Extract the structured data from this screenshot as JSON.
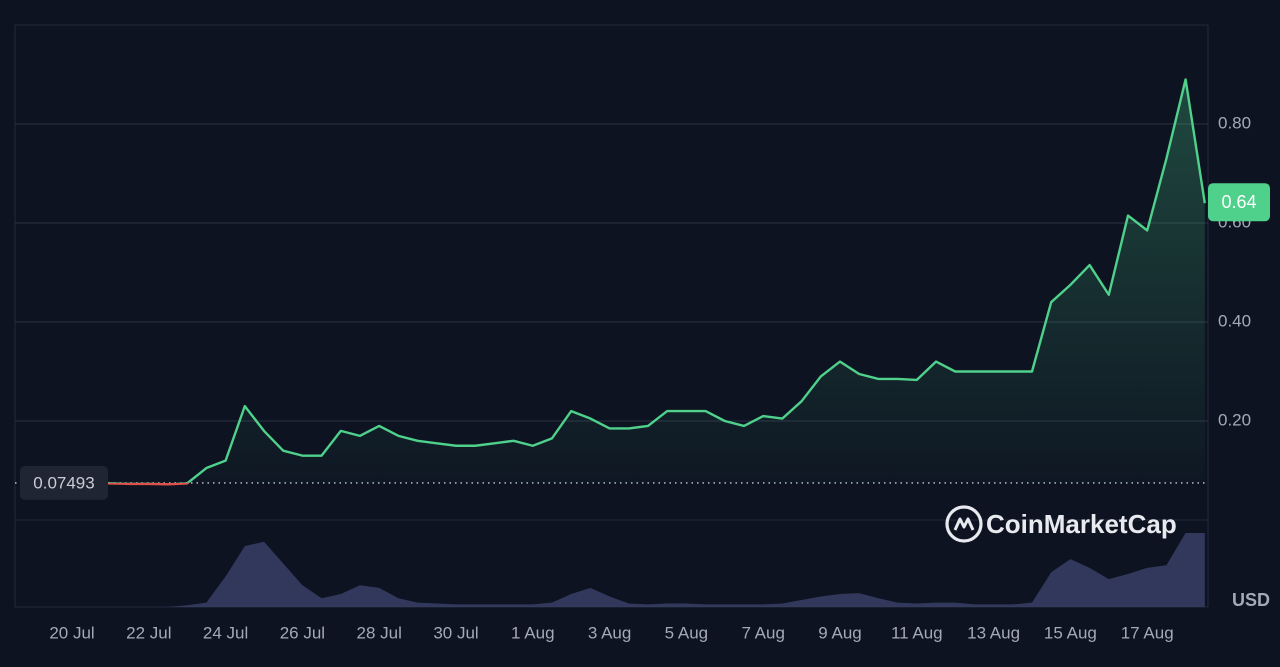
{
  "chart_data": {
    "type": "line",
    "categories": [
      null,
      null,
      "20 Jul",
      null,
      null,
      null,
      "22 Jul",
      null,
      null,
      null,
      "24 Jul",
      null,
      null,
      null,
      "26 Jul",
      null,
      null,
      null,
      "28 Jul",
      null,
      null,
      null,
      "30 Jul",
      null,
      null,
      null,
      "1 Aug",
      null,
      null,
      null,
      "3 Aug",
      null,
      null,
      null,
      "5 Aug",
      null,
      null,
      null,
      "7 Aug",
      null,
      null,
      null,
      "9 Aug",
      null,
      null,
      null,
      "11 Aug",
      null,
      null,
      null,
      "13 Aug",
      null,
      null,
      null,
      "15 Aug",
      null,
      null,
      null,
      "17 Aug",
      null,
      null,
      null
    ],
    "series": [
      {
        "name": "Price",
        "color": "#4fd18b",
        "below_color": "#e0514b",
        "values": [
          0.075,
          0.075,
          0.075,
          0.074,
          0.074,
          0.073,
          0.073,
          0.072,
          0.074,
          0.105,
          0.12,
          0.23,
          0.18,
          0.14,
          0.13,
          0.13,
          0.18,
          0.17,
          0.19,
          0.17,
          0.16,
          0.155,
          0.15,
          0.15,
          0.155,
          0.16,
          0.15,
          0.165,
          0.22,
          0.205,
          0.185,
          0.185,
          0.19,
          0.22,
          0.22,
          0.22,
          0.2,
          0.19,
          0.21,
          0.205,
          0.24,
          0.29,
          0.32,
          0.295,
          0.285,
          0.285,
          0.283,
          0.32,
          0.3,
          0.3,
          0.3,
          0.3,
          0.3,
          0.44,
          0.475,
          0.515,
          0.455,
          0.615,
          0.585,
          0.73,
          0.89,
          0.64
        ]
      },
      {
        "name": "Volume",
        "color": "#3a3f66",
        "axis": "volume",
        "values": [
          0,
          0,
          0,
          0,
          0,
          0,
          0,
          0,
          2,
          5,
          35,
          70,
          75,
          50,
          25,
          10,
          15,
          25,
          22,
          10,
          5,
          4,
          3,
          3,
          3,
          3,
          3,
          5,
          15,
          22,
          12,
          4,
          3,
          4,
          4,
          3,
          3,
          3,
          3,
          4,
          8,
          12,
          15,
          16,
          10,
          5,
          4,
          5,
          5,
          3,
          3,
          3,
          5,
          40,
          55,
          45,
          32,
          38,
          45,
          48,
          85,
          85
        ]
      }
    ],
    "ylim": [
      0,
      1.0
    ],
    "yticks": [
      {
        "value": 0.2,
        "label": "0.20"
      },
      {
        "value": 0.4,
        "label": "0.40"
      },
      {
        "value": 0.6,
        "label": "0.60"
      },
      {
        "value": 0.8,
        "label": "0.80"
      }
    ],
    "volume_lim": [
      0,
      100
    ],
    "baseline": 0.07493,
    "current_price": 0.64,
    "currency": "USD",
    "watermark": "CoinMarketCap",
    "grid": true
  }
}
